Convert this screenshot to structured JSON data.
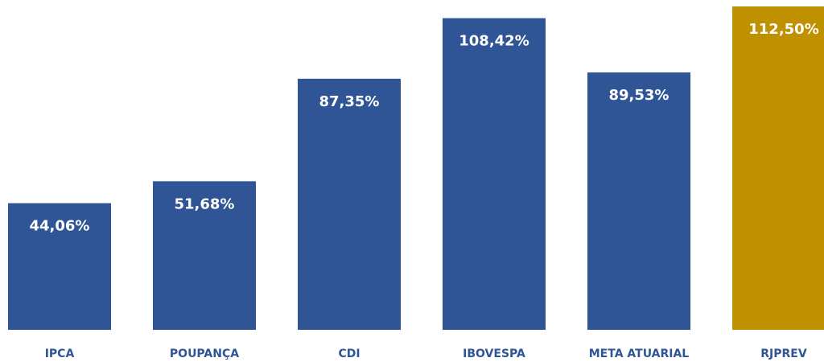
{
  "chart_data": {
    "type": "bar",
    "categories": [
      "IPCA",
      "POUPANÇA",
      "CDI",
      "IBOVESPA",
      "META ATUARIAL",
      "RJPREV"
    ],
    "values": [
      44.06,
      51.68,
      87.35,
      108.42,
      89.53,
      112.5
    ],
    "value_labels": [
      "44,06%",
      "51,68%",
      "87,35%",
      "108,42%",
      "89,53%",
      "112,50%"
    ],
    "colors": [
      "#2f5597",
      "#2f5597",
      "#2f5597",
      "#2f5597",
      "#2f5597",
      "#bf9000"
    ]
  }
}
